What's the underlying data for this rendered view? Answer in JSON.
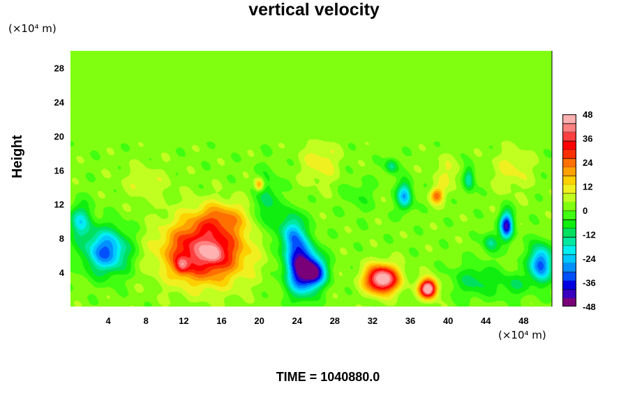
{
  "chart_data": {
    "type": "heatmap",
    "title": "vertical velocity",
    "ylabel": "Height",
    "x_unit_label": "(×10⁴ m)",
    "y_unit_label": "(×10⁴ m)",
    "footer": "TIME = 1040880.0",
    "xlim": [
      0,
      51
    ],
    "ylim": [
      0,
      30
    ],
    "x_ticks": [
      4,
      8,
      12,
      16,
      20,
      24,
      28,
      32,
      36,
      40,
      44,
      48
    ],
    "y_ticks": [
      4,
      8,
      12,
      16,
      20,
      24,
      28
    ],
    "colorbar": {
      "range": [
        -48,
        48
      ],
      "ticks": [
        48,
        36,
        24,
        12,
        0,
        -12,
        -24,
        -36,
        -48
      ],
      "colors": [
        "#7a007a",
        "#3a00c0",
        "#0000e0",
        "#0050ff",
        "#0090ff",
        "#00c8ff",
        "#00eef0",
        "#00e8a0",
        "#00e060",
        "#10ee10",
        "#40ff10",
        "#80ff10",
        "#c0ff20",
        "#f0f020",
        "#ffd000",
        "#ffa000",
        "#ff7000",
        "#ff3000",
        "#ff0000",
        "#ff4040",
        "#ff8080",
        "#ffb0b0"
      ]
    },
    "background_value": 2,
    "features": [
      {
        "x": 14.2,
        "y": 6.5,
        "sx": 4.2,
        "sy": 3.6,
        "value": 40
      },
      {
        "x": 11.8,
        "y": 4.8,
        "sx": 0.7,
        "sy": 1.0,
        "value": 18
      },
      {
        "x": 15.2,
        "y": 6.3,
        "sx": 0.8,
        "sy": 1.0,
        "value": 12
      },
      {
        "x": 16.0,
        "y": 10.5,
        "sx": 2.8,
        "sy": 1.8,
        "value": 14
      },
      {
        "x": 20.0,
        "y": 14.3,
        "sx": 0.5,
        "sy": 0.8,
        "value": 22
      },
      {
        "x": 33.0,
        "y": 3.2,
        "sx": 1.7,
        "sy": 1.6,
        "value": 50
      },
      {
        "x": 37.9,
        "y": 2.1,
        "sx": 0.9,
        "sy": 1.1,
        "value": 52
      },
      {
        "x": 38.8,
        "y": 13.0,
        "sx": 0.7,
        "sy": 0.9,
        "value": 22
      },
      {
        "x": 26.5,
        "y": 17.0,
        "sx": 1.8,
        "sy": 2.5,
        "value": 10
      },
      {
        "x": 46.8,
        "y": 16.0,
        "sx": 2.0,
        "sy": 2.5,
        "value": 8
      },
      {
        "x": 40.0,
        "y": 15.5,
        "sx": 1.5,
        "sy": 2.0,
        "value": 7
      },
      {
        "x": 3.8,
        "y": 6.5,
        "sx": 2.3,
        "sy": 2.6,
        "value": -34
      },
      {
        "x": 1.0,
        "y": 10.0,
        "sx": 1.2,
        "sy": 2.0,
        "value": -20
      },
      {
        "x": 24.5,
        "y": 4.5,
        "sx": 1.6,
        "sy": 3.0,
        "value": -48
      },
      {
        "x": 23.5,
        "y": 8.5,
        "sx": 1.2,
        "sy": 2.5,
        "value": -26
      },
      {
        "x": 26.0,
        "y": 4.0,
        "sx": 1.2,
        "sy": 1.6,
        "value": -32
      },
      {
        "x": 35.4,
        "y": 13.0,
        "sx": 0.8,
        "sy": 1.6,
        "value": -28
      },
      {
        "x": 34.0,
        "y": 16.5,
        "sx": 0.7,
        "sy": 0.9,
        "value": -16
      },
      {
        "x": 42.2,
        "y": 15.0,
        "sx": 0.6,
        "sy": 1.5,
        "value": -20
      },
      {
        "x": 46.2,
        "y": 9.5,
        "sx": 0.7,
        "sy": 1.6,
        "value": -42
      },
      {
        "x": 44.5,
        "y": 7.5,
        "sx": 0.8,
        "sy": 1.2,
        "value": -16
      },
      {
        "x": 49.8,
        "y": 5.0,
        "sx": 1.2,
        "sy": 2.2,
        "value": -36
      },
      {
        "x": 43.0,
        "y": 3.0,
        "sx": 2.5,
        "sy": 2.0,
        "value": -12
      },
      {
        "x": 20.8,
        "y": 12.0,
        "sx": 1.2,
        "sy": 3.5,
        "value": -14
      },
      {
        "x": 47.0,
        "y": 2.5,
        "sx": 1.5,
        "sy": 1.5,
        "value": -10
      },
      {
        "x": 8.0,
        "y": 14.5,
        "sx": 2.5,
        "sy": 2.0,
        "value": 6
      },
      {
        "x": 30.5,
        "y": 13.0,
        "sx": 1.5,
        "sy": 2.0,
        "value": -6
      }
    ]
  }
}
